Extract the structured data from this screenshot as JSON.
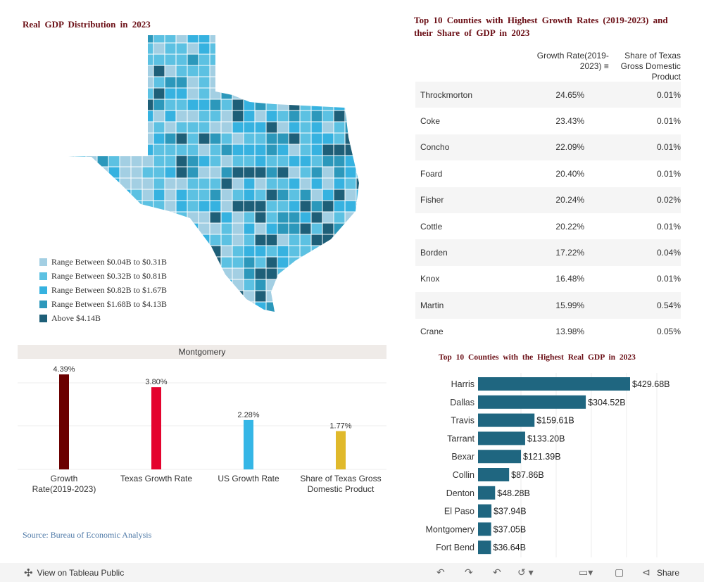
{
  "map": {
    "title": "Real GDP Distribution in 2023",
    "legend": [
      {
        "label": "Range Between $0.04B to $0.31B",
        "color": "#a3cfe3"
      },
      {
        "label": "Range Between $0.32B to $0.81B",
        "color": "#5cc1e2"
      },
      {
        "label": "Range Between $0.82B to $1.67B",
        "color": "#36b2e0"
      },
      {
        "label": "Range Between $1.68B to $4.13B",
        "color": "#2c98bb"
      },
      {
        "label": "Above $4.14B",
        "color": "#1e5f78"
      }
    ]
  },
  "table": {
    "title": "Top 10 Counties with Highest Growth Rates (2019-2023) and their Share of GDP in 2023",
    "headers": [
      "Growth Rate(2019-2023)",
      "Share of Texas Gross Domestic Product"
    ],
    "sort_icon": "sort-descending-icon",
    "rows": [
      [
        "Throckmorton",
        "24.65%",
        "0.01%"
      ],
      [
        "Coke",
        "23.43%",
        "0.01%"
      ],
      [
        "Concho",
        "22.09%",
        "0.01%"
      ],
      [
        "Foard",
        "20.40%",
        "0.01%"
      ],
      [
        "Fisher",
        "20.24%",
        "0.02%"
      ],
      [
        "Cottle",
        "20.22%",
        "0.01%"
      ],
      [
        "Borden",
        "17.22%",
        "0.04%"
      ],
      [
        "Knox",
        "16.48%",
        "0.01%"
      ],
      [
        "Martin",
        "15.99%",
        "0.54%"
      ],
      [
        "Crane",
        "13.98%",
        "0.05%"
      ]
    ]
  },
  "chart_data": [
    {
      "type": "bar",
      "title": "Montgomery",
      "categories": [
        "Growth Rate(2019-2023)",
        "Texas Growth Rate",
        "US Growth Rate",
        "Share of Texas Gross Domestic Product"
      ],
      "values": [
        4.39,
        3.8,
        2.28,
        1.77
      ],
      "labels": [
        "4.39%",
        "3.80%",
        "2.28%",
        "1.77%"
      ],
      "colors": [
        "#6b0000",
        "#e4032e",
        "#35b6e6",
        "#e0b92b"
      ],
      "grid": true
    },
    {
      "type": "bar",
      "orientation": "horizontal",
      "title": "Top 10 Counties with the Highest Real GDP in 2023",
      "categories": [
        "Harris",
        "Dallas",
        "Travis",
        "Tarrant",
        "Bexar",
        "Collin",
        "Denton",
        "El Paso",
        "Montgomery",
        "Fort Bend"
      ],
      "values": [
        429.68,
        304.52,
        159.61,
        133.2,
        121.39,
        87.86,
        48.28,
        37.94,
        37.05,
        36.64
      ],
      "labels": [
        "$429.68B",
        "$304.52B",
        "$159.61B",
        "$133.20B",
        "$121.39B",
        "$87.86B",
        "$48.28B",
        "$37.94B",
        "$37.05B",
        "$36.64B"
      ],
      "color": "#1f6680",
      "grid": true
    }
  ],
  "source": "Source: Bureau of Economic Analysis",
  "toolbar": {
    "view_label": "View on Tableau Public",
    "share_label": "Share"
  }
}
